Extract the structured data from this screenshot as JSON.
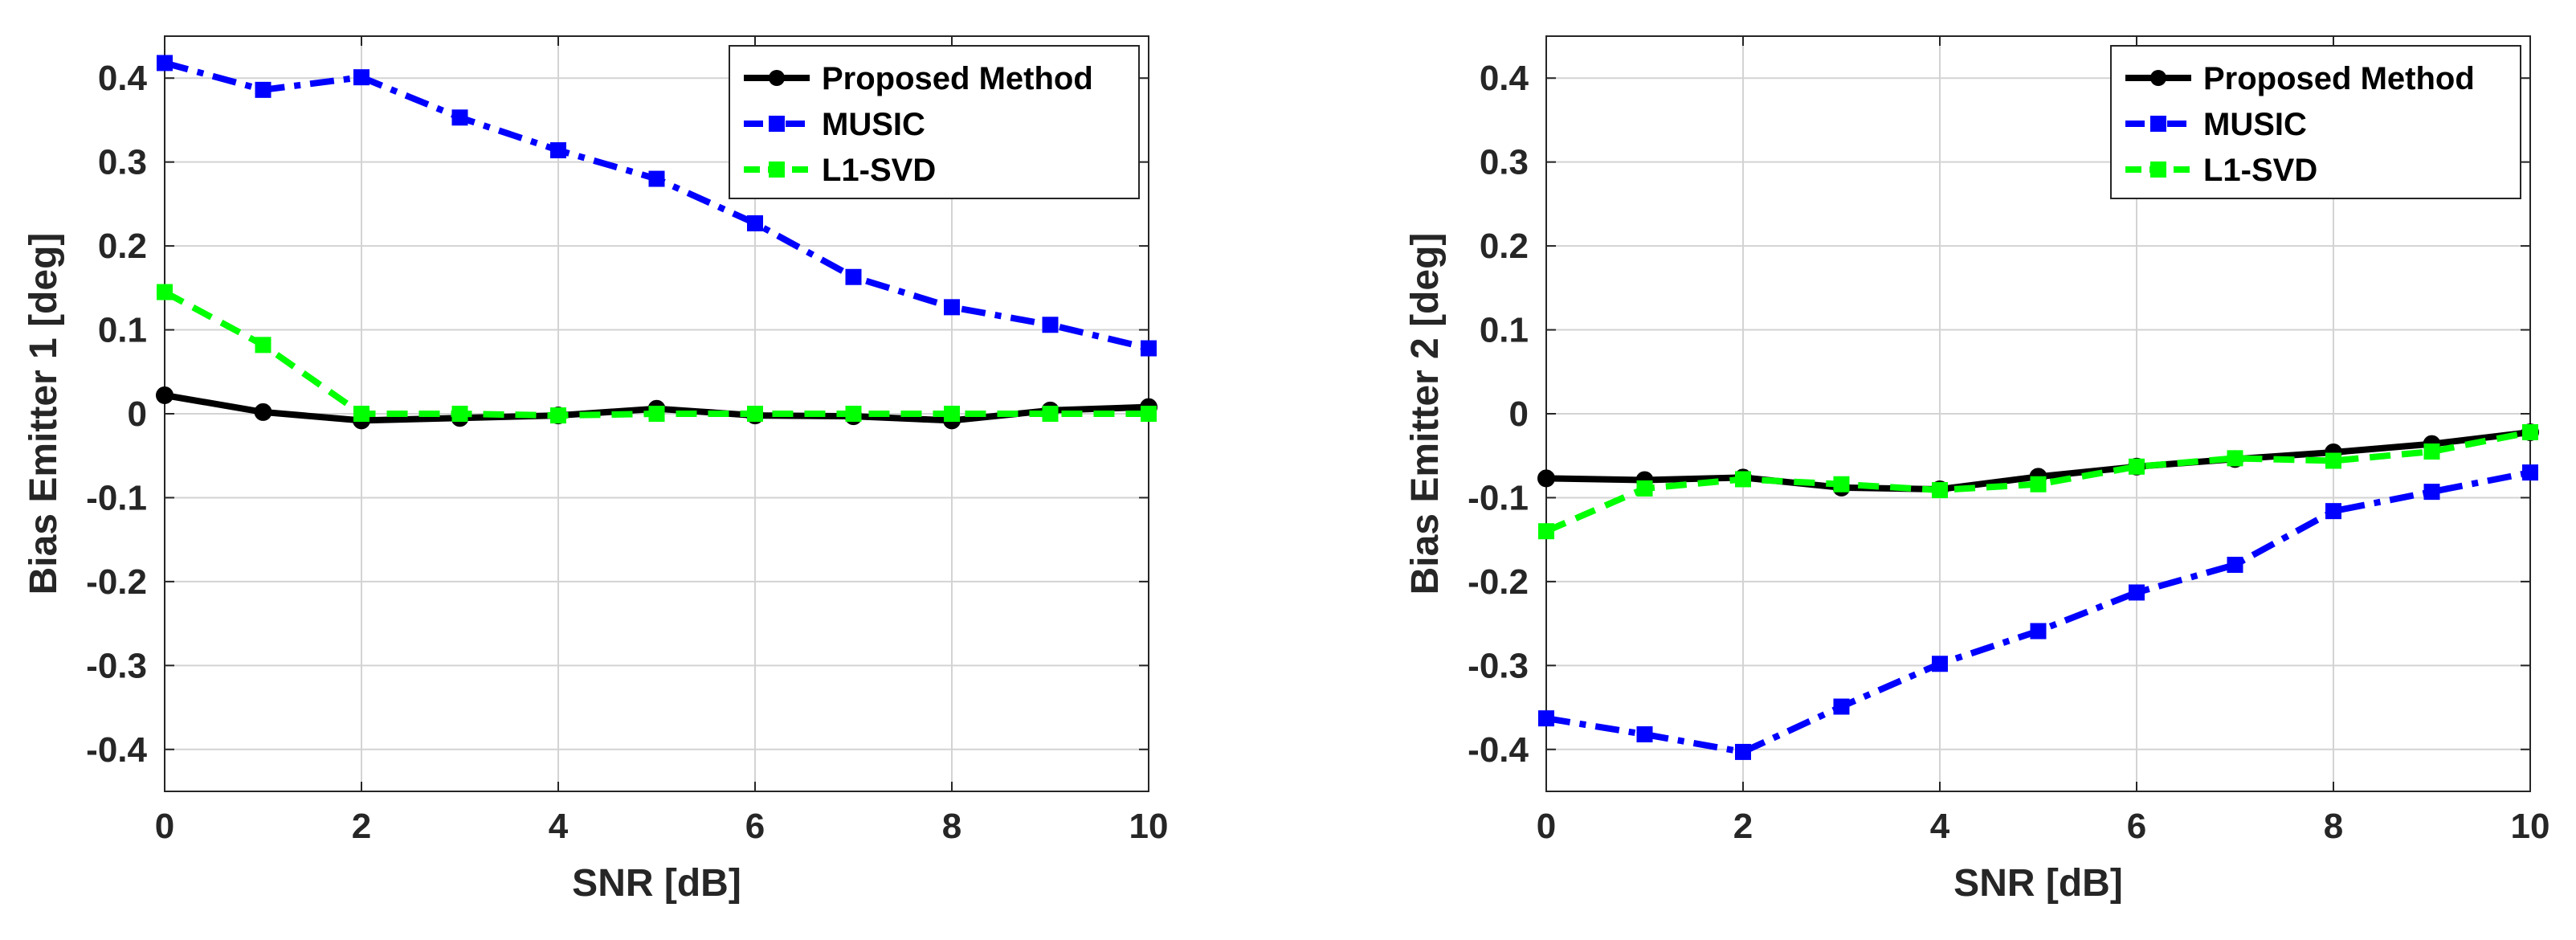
{
  "chart_data": [
    {
      "type": "line",
      "xlabel": "SNR [dB]",
      "ylabel": "Bias Emitter 1 [deg]",
      "xlim": [
        0,
        10
      ],
      "ylim": [
        -0.45,
        0.45
      ],
      "xticks": [
        0,
        2,
        4,
        6,
        8,
        10
      ],
      "yticks": [
        -0.4,
        -0.3,
        -0.2,
        -0.1,
        0,
        0.1,
        0.2,
        0.3,
        0.4
      ],
      "ytick_labels": [
        "-0.4",
        "-0.3",
        "-0.2",
        "-0.1",
        "0",
        "0.1",
        "0.2",
        "0.3",
        "0.4"
      ],
      "grid": true,
      "legend_position": "top-right",
      "x": [
        0,
        1,
        2,
        3,
        4,
        5,
        6,
        7,
        8,
        9,
        10
      ],
      "series": [
        {
          "name": "Proposed Method",
          "color": "#000000",
          "line_style": "solid",
          "marker": "circle",
          "values": [
            0.022,
            0.002,
            -0.008,
            -0.005,
            -0.002,
            0.006,
            -0.002,
            -0.003,
            -0.008,
            0.004,
            0.008
          ]
        },
        {
          "name": "MUSIC",
          "color": "#0000ff",
          "line_style": "dash-dot",
          "marker": "square",
          "values": [
            0.418,
            0.386,
            0.401,
            0.353,
            0.314,
            0.28,
            0.227,
            0.163,
            0.127,
            0.106,
            0.078
          ]
        },
        {
          "name": "L1-SVD",
          "color": "#00ff00",
          "line_style": "dashed",
          "marker": "square",
          "values": [
            0.145,
            0.082,
            0.0,
            0.0,
            -0.002,
            0.0,
            0.0,
            0.0,
            0.0,
            0.0,
            0.0
          ]
        }
      ]
    },
    {
      "type": "line",
      "xlabel": "SNR [dB]",
      "ylabel": "Bias Emitter 2 [deg]",
      "xlim": [
        0,
        10
      ],
      "ylim": [
        -0.45,
        0.45
      ],
      "xticks": [
        0,
        2,
        4,
        6,
        8,
        10
      ],
      "yticks": [
        -0.4,
        -0.3,
        -0.2,
        -0.1,
        0,
        0.1,
        0.2,
        0.3,
        0.4
      ],
      "ytick_labels": [
        "-0.4",
        "-0.3",
        "-0.2",
        "-0.1",
        "0",
        "0.1",
        "0.2",
        "0.3",
        "0.4"
      ],
      "grid": true,
      "legend_position": "top-right",
      "x": [
        0,
        1,
        2,
        3,
        4,
        5,
        6,
        7,
        8,
        9,
        10
      ],
      "series": [
        {
          "name": "Proposed Method",
          "color": "#000000",
          "line_style": "solid",
          "marker": "circle",
          "values": [
            -0.077,
            -0.079,
            -0.076,
            -0.088,
            -0.09,
            -0.075,
            -0.063,
            -0.054,
            -0.046,
            -0.036,
            -0.022
          ]
        },
        {
          "name": "MUSIC",
          "color": "#0000ff",
          "line_style": "dash-dot",
          "marker": "square",
          "values": [
            -0.363,
            -0.382,
            -0.403,
            -0.349,
            -0.298,
            -0.259,
            -0.213,
            -0.18,
            -0.116,
            -0.093,
            -0.07
          ]
        },
        {
          "name": "L1-SVD",
          "color": "#00ff00",
          "line_style": "dashed",
          "marker": "square",
          "values": [
            -0.14,
            -0.089,
            -0.078,
            -0.084,
            -0.091,
            -0.084,
            -0.063,
            -0.053,
            -0.056,
            -0.045,
            -0.022
          ]
        }
      ]
    }
  ]
}
